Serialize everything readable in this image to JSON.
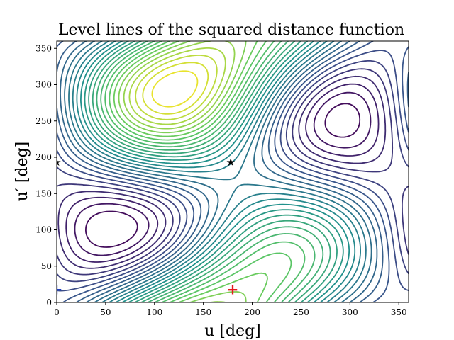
{
  "chart_data": {
    "type": "contour",
    "title": "Level lines of the squared distance function",
    "xlabel": "u [deg]",
    "ylabel": "u′ [deg]",
    "xlim": [
      0,
      360
    ],
    "ylim": [
      0,
      360
    ],
    "x_ticks": [
      0,
      50,
      100,
      150,
      200,
      250,
      300,
      350
    ],
    "y_ticks": [
      0,
      50,
      100,
      150,
      200,
      250,
      300,
      350
    ],
    "grid": false,
    "legend": "none",
    "colormap": [
      "#440154",
      "#3b528b",
      "#21918c",
      "#5ec962",
      "#fde725"
    ],
    "markers": [
      {
        "label": "★",
        "x": 178,
        "y": 194,
        "color": "#000000"
      },
      {
        "label": "★",
        "x": 0,
        "y": 194,
        "color": "#000000"
      },
      {
        "label": "+",
        "x": 180,
        "y": 17,
        "color": "#e41a1c"
      },
      {
        "label": "+",
        "x": 0,
        "y": 17,
        "color": "#1f3fbf"
      }
    ]
  }
}
